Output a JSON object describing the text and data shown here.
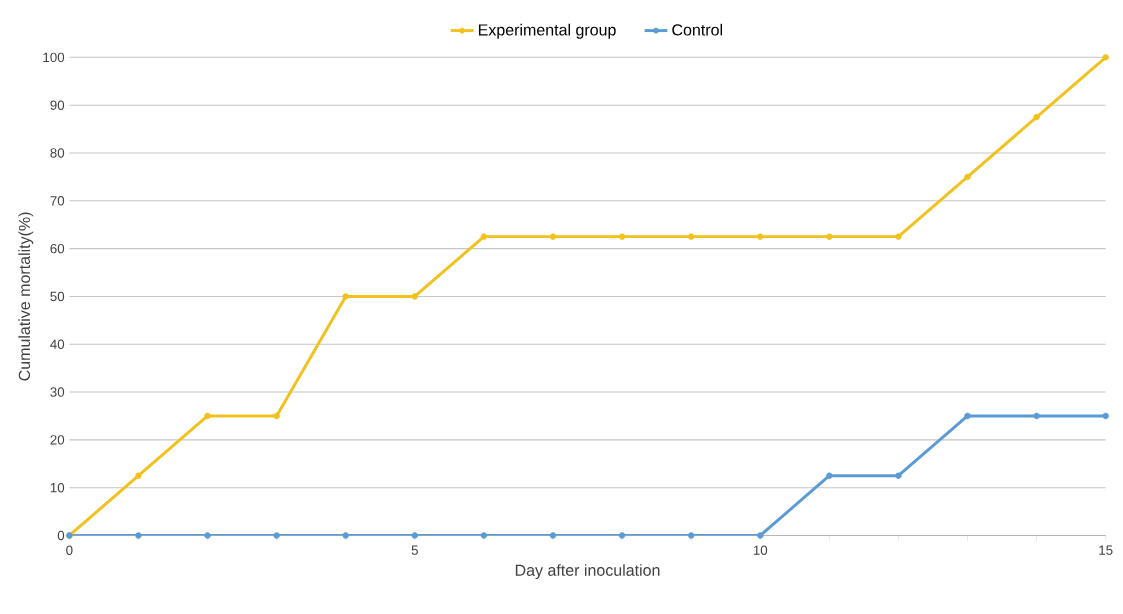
{
  "chart_data": {
    "type": "line",
    "xlabel": "Day after inoculation",
    "ylabel": "Cumulative mortality(%)",
    "x": [
      0,
      1,
      2,
      3,
      4,
      5,
      6,
      7,
      8,
      9,
      10,
      11,
      12,
      13,
      14,
      15
    ],
    "series": [
      {
        "name": "Experimental group",
        "color": "#f2c11c",
        "values": [
          0,
          12.5,
          25,
          25,
          50,
          50,
          62.5,
          62.5,
          62.5,
          62.5,
          62.5,
          62.5,
          62.5,
          75,
          87.5,
          100
        ]
      },
      {
        "name": "Control",
        "color": "#5b9bd5",
        "values": [
          0,
          0,
          0,
          0,
          0,
          0,
          0,
          0,
          0,
          0,
          0,
          12.5,
          12.5,
          25,
          25,
          25
        ]
      }
    ],
    "xlim": [
      0,
      15
    ],
    "xticks": [
      0,
      5,
      10,
      15
    ],
    "ylim": [
      0,
      100
    ],
    "yticks": [
      0,
      10,
      20,
      30,
      40,
      50,
      60,
      70,
      80,
      90,
      100
    ],
    "grid": "y",
    "legend": "top",
    "marker": "circle",
    "line_style": "solid"
  }
}
